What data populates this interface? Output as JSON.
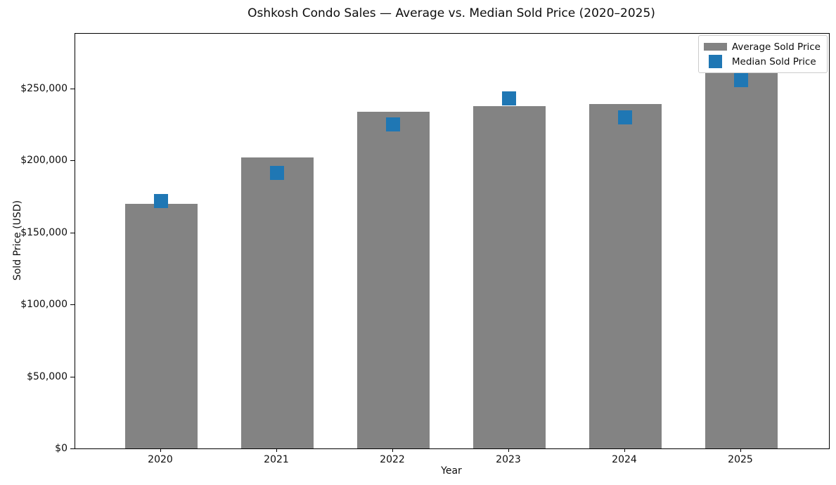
{
  "figure": {
    "title": "Oshkosh Condo Sales — Average vs. Median Sold Price (2020–2025)",
    "xlabel": "Year",
    "ylabel": "Sold Price (USD)"
  },
  "legend": {
    "position": "upper right",
    "items": [
      {
        "label": "Average Sold Price",
        "swatch_shape": "bar",
        "color": "#838383"
      },
      {
        "label": "Median Sold Price",
        "swatch_shape": "square",
        "color": "#1f77b4"
      }
    ]
  },
  "chart_data": {
    "type": "bar",
    "title": "Oshkosh Condo Sales — Average vs. Median Sold Price (2020–2025)",
    "xlabel": "Year",
    "ylabel": "Sold Price (USD)",
    "categories": [
      "2020",
      "2021",
      "2022",
      "2023",
      "2024",
      "2025"
    ],
    "series": [
      {
        "name": "Average Sold Price",
        "type": "bar",
        "color": "#838383",
        "values": [
          170000,
          202000,
          234000,
          237500,
          239000,
          262000
        ]
      },
      {
        "name": "Median Sold Price",
        "type": "scatter",
        "marker": "square",
        "color": "#1f77b4",
        "values": [
          172000,
          191500,
          225000,
          243000,
          230000,
          256000
        ]
      }
    ],
    "ylim": [
      0,
      288000
    ],
    "yticks": [
      0,
      50000,
      100000,
      150000,
      200000,
      250000
    ],
    "ytick_labels": [
      "$0",
      "$50,000",
      "$100,000",
      "$150,000",
      "$200,000",
      "$250,000"
    ],
    "grid": false,
    "legend_position": "upper right"
  }
}
